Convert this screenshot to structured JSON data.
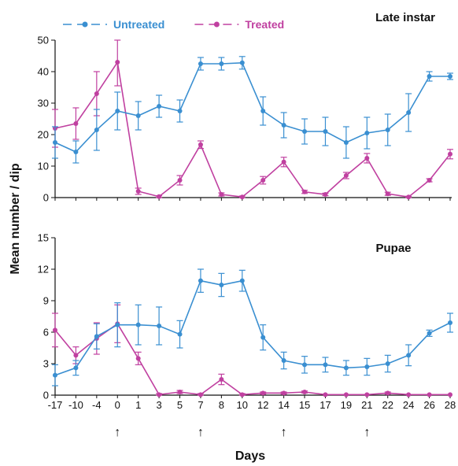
{
  "chart_data": {
    "type": "line",
    "ylabel": "Mean number / dip",
    "xlabel": "Days",
    "x_categories": [
      "-17",
      "-10",
      "-4",
      "0",
      "1",
      "3",
      "5",
      "7",
      "8",
      "10",
      "12",
      "14",
      "15",
      "17",
      "19",
      "21",
      "22",
      "24",
      "26",
      "28"
    ],
    "arrow_days": [
      "0",
      "7",
      "14",
      "21"
    ],
    "arrow_glyph": "↑",
    "legend": {
      "placement": "top-left",
      "entries": [
        {
          "name": "Untreated",
          "color": "#3a8fd1"
        },
        {
          "name": "Treated",
          "color": "#c040a0"
        }
      ]
    },
    "panels": [
      {
        "title": "Late instar",
        "ylim": [
          0,
          50
        ],
        "yticks": [
          "0",
          "10",
          "20",
          "30",
          "40",
          "50"
        ],
        "series": [
          {
            "name": "Untreated",
            "color": "#3a8fd1",
            "values": [
              17.5,
              14.5,
              21.5,
              27.5,
              26,
              29,
              27.5,
              42.5,
              42.5,
              42.8,
              27.5,
              23,
              21,
              21,
              17.5,
              20.5,
              21.5,
              27,
              38.5,
              38.5
            ],
            "errors": [
              5,
              3.5,
              6.5,
              6,
              4.5,
              3.5,
              3.5,
              2,
              2,
              2,
              4.5,
              4,
              4,
              4.5,
              5,
              5,
              5,
              6,
              1.5,
              1
            ]
          },
          {
            "name": "Treated",
            "color": "#c040a0",
            "values": [
              22,
              23.5,
              33,
              43,
              2,
              0.3,
              5.5,
              16.8,
              1,
              0.2,
              5.5,
              11.3,
              1.8,
              1,
              7,
              12.5,
              1.2,
              0.2,
              5.5,
              13.8
            ],
            "errors": [
              6,
              5,
              7,
              7.5,
              1,
              0.3,
              1.5,
              1.2,
              0.5,
              0.3,
              1.2,
              1.5,
              0.5,
              0.4,
              1,
              1.5,
              0.5,
              0.2,
              0.5,
              1.5
            ]
          }
        ]
      },
      {
        "title": "Pupae",
        "ylim": [
          0,
          15
        ],
        "yticks": [
          "0",
          "3",
          "6",
          "9",
          "12",
          "15"
        ],
        "series": [
          {
            "name": "Untreated",
            "color": "#3a8fd1",
            "values": [
              1.9,
              2.6,
              5.6,
              6.7,
              6.7,
              6.6,
              5.8,
              10.9,
              10.5,
              10.9,
              5.5,
              3.3,
              2.9,
              2.9,
              2.6,
              2.7,
              3,
              3.8,
              5.9,
              6.9
            ],
            "errors": [
              1,
              0.7,
              1.2,
              2.1,
              1.9,
              1.8,
              1.3,
              1.1,
              1.1,
              1,
              1.2,
              0.8,
              0.8,
              0.7,
              0.7,
              0.8,
              0.8,
              1,
              0.3,
              0.9
            ]
          },
          {
            "name": "Treated",
            "color": "#c040a0",
            "values": [
              6.2,
              3.8,
              5.4,
              6.8,
              3.5,
              0.05,
              0.3,
              0.05,
              1.5,
              0.05,
              0.2,
              0.2,
              0.3,
              0.05,
              0.05,
              0.05,
              0.2,
              0.05,
              0.05,
              0.05
            ],
            "errors": [
              1.6,
              0.8,
              1.5,
              1.8,
              0.6,
              0.1,
              0.15,
              0.1,
              0.5,
              0.1,
              0.1,
              0.1,
              0.1,
              0.05,
              0.05,
              0.05,
              0.1,
              0.05,
              0.05,
              0.05
            ]
          }
        ]
      }
    ]
  }
}
